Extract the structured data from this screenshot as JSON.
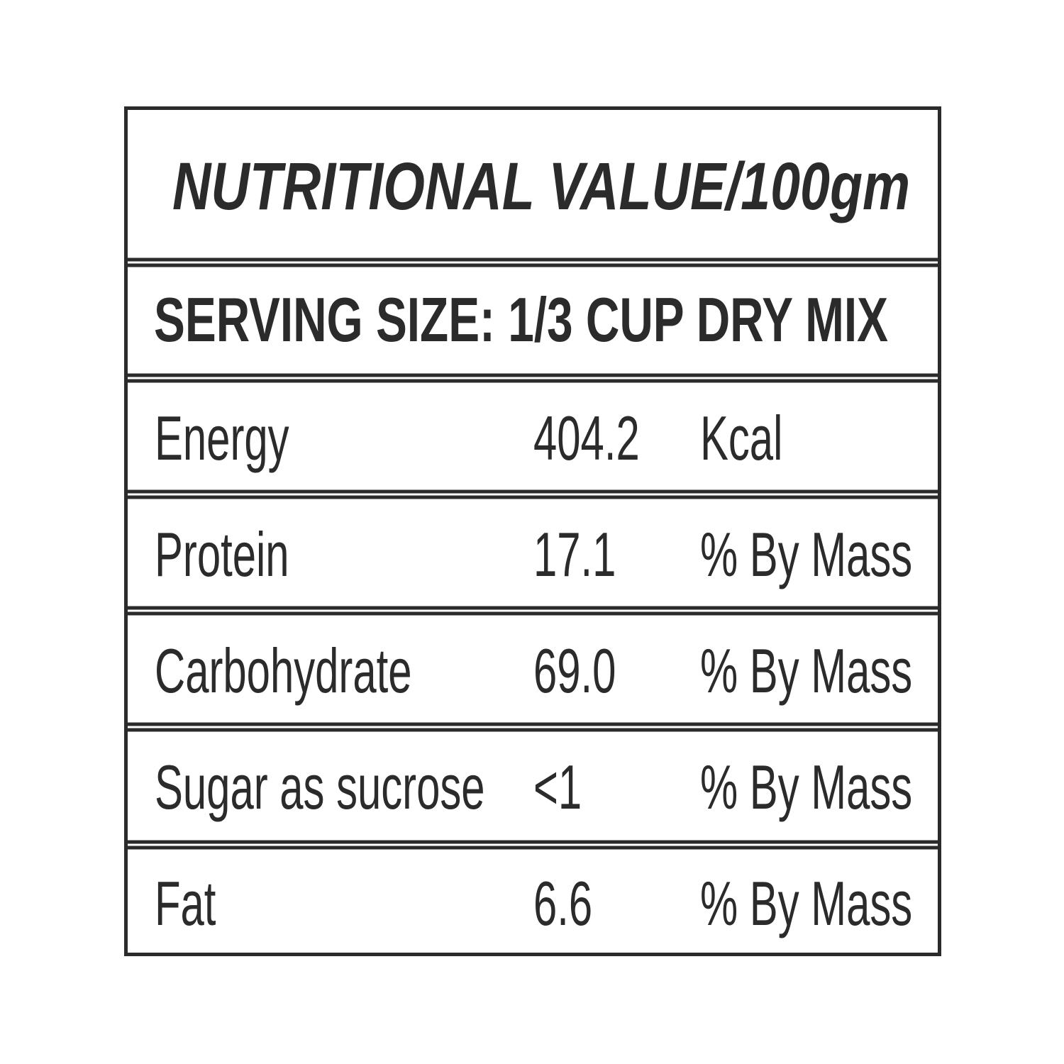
{
  "title": "NUTRITIONAL VALUE/100gm",
  "serving_size": "SERVING SIZE: 1/3 CUP DRY MIX",
  "table": {
    "rows": [
      [
        "Energy",
        "404.2",
        "Kcal"
      ],
      [
        "Protein",
        "17.1",
        "% By Mass"
      ],
      [
        "Carbohydrate",
        "69.0",
        "% By Mass"
      ],
      [
        "Sugar as sucrose",
        "<1",
        "% By Mass"
      ],
      [
        "Fat",
        "6.6",
        "% By Mass"
      ]
    ]
  }
}
